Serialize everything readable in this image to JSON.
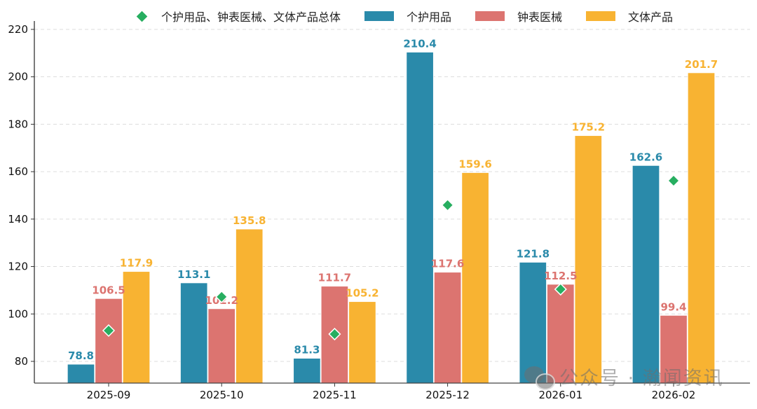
{
  "chart_data": {
    "type": "bar",
    "title": "",
    "xlabel": "",
    "ylabel": "",
    "ylim": [
      71,
      222
    ],
    "yticks": [
      80,
      100,
      120,
      140,
      160,
      180,
      200,
      220
    ],
    "grid": {
      "y": true,
      "style": "dashed"
    },
    "legend_position": "top",
    "categories": [
      "2025-09",
      "2025-10",
      "2025-11",
      "2025-12",
      "2026-01",
      "2026-02"
    ],
    "series": [
      {
        "name": "个护用品",
        "type": "bar",
        "color": "#2a8aaa",
        "values": [
          78.8,
          113.1,
          81.3,
          210.4,
          121.8,
          162.6
        ]
      },
      {
        "name": "钟表医械",
        "type": "bar",
        "color": "#dc7470",
        "values": [
          106.5,
          102.2,
          111.7,
          117.6,
          112.5,
          99.4
        ]
      },
      {
        "name": "文体产品",
        "type": "bar",
        "color": "#f8b332",
        "values": [
          117.9,
          135.8,
          105.2,
          159.6,
          175.2,
          201.7
        ]
      },
      {
        "name": "个护用品、钟表医械、文体产品总体",
        "type": "scatter",
        "marker": "diamond",
        "color": "#27ae60",
        "values": [
          93.0,
          107.2,
          91.5,
          145.9,
          110.4,
          156.2
        ]
      }
    ],
    "data_labels": true
  },
  "legend": {
    "items": [
      {
        "label": "个护用品、钟表医械、文体产品总体",
        "icon": "diamond-marker-icon",
        "color": "#27ae60"
      },
      {
        "label": "个护用品",
        "icon": "bar-swatch-icon",
        "color": "#2a8aaa"
      },
      {
        "label": "钟表医械",
        "icon": "bar-swatch-icon",
        "color": "#dc7470"
      },
      {
        "label": "文体产品",
        "icon": "bar-swatch-icon",
        "color": "#f8b332"
      }
    ]
  },
  "watermark": {
    "text": "公众号 · 瀚闻资讯",
    "icon": "wechat-icon"
  }
}
